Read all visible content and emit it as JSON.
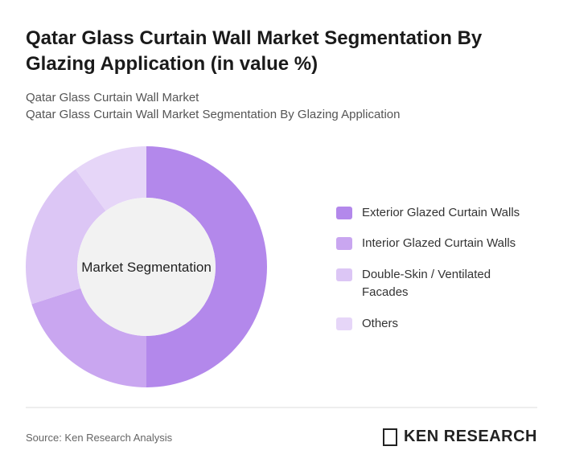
{
  "chart_data": {
    "type": "pie",
    "title": "Qatar Glass Curtain Wall Market Segmentation By Glazing Application (in value %)",
    "subtitle": [
      "Qatar Glass Curtain Wall Market",
      "Qatar Glass Curtain Wall Market Segmentation By Glazing Application"
    ],
    "center_label": "Market Segmentation",
    "categories": [
      "Exterior Glazed Curtain Walls",
      "Interior Glazed Curtain Walls",
      "Double-Skin / Ventilated Facades",
      "Others"
    ],
    "values": [
      50,
      20,
      20,
      10
    ],
    "colors": [
      "#b388eb",
      "#c9a6f0",
      "#dcc6f5",
      "#e6d6f8"
    ],
    "source": "Source: Ken Research Analysis",
    "logo": "KEN RESEARCH"
  }
}
